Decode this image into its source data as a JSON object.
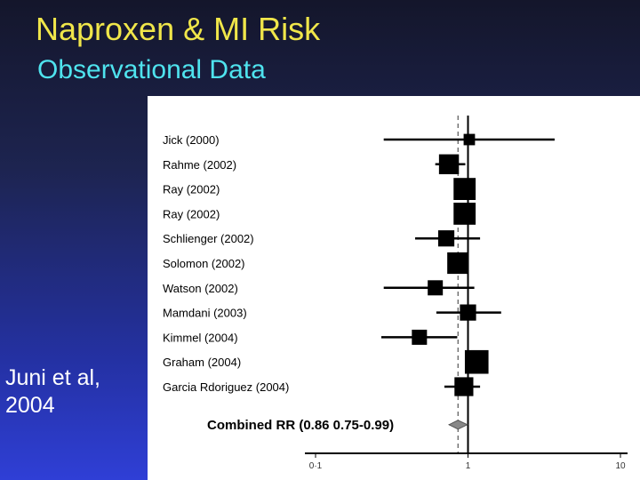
{
  "slide": {
    "title": "Naproxen & MI Risk",
    "subtitle": "Observational Data",
    "citation": "Juni et al, 2004"
  },
  "chart_data": {
    "type": "forest",
    "scale": "log",
    "xlim": [
      0.1,
      10
    ],
    "ticks": [
      {
        "value": 0.1,
        "label": "0·1"
      },
      {
        "value": 1,
        "label": "1"
      },
      {
        "value": 10,
        "label": "10"
      }
    ],
    "reference_line": 1,
    "pooled_line": 0.86,
    "studies": [
      {
        "label": "Jick (2000)",
        "rr": 1.02,
        "lo": 0.28,
        "hi": 3.7,
        "weight": 0.4
      },
      {
        "label": "Rahme (2002)",
        "rr": 0.75,
        "lo": 0.61,
        "hi": 0.96,
        "weight": 1.2
      },
      {
        "label": "Ray (2002)",
        "rr": 0.95,
        "lo": 0.86,
        "hi": 1.05,
        "weight": 1.4
      },
      {
        "label": "Ray (2002)",
        "rr": 0.95,
        "lo": 0.89,
        "hi": 1.01,
        "weight": 1.4
      },
      {
        "label": "Schlienger (2002)",
        "rr": 0.72,
        "lo": 0.45,
        "hi": 1.2,
        "weight": 0.85
      },
      {
        "label": "Solomon (2002)",
        "rr": 0.86,
        "lo": 0.76,
        "hi": 0.97,
        "weight": 1.35
      },
      {
        "label": "Watson (2002)",
        "rr": 0.61,
        "lo": 0.28,
        "hi": 1.1,
        "weight": 0.75
      },
      {
        "label": "Mamdani (2003)",
        "rr": 1.0,
        "lo": 0.62,
        "hi": 1.65,
        "weight": 0.85
      },
      {
        "label": "Kimmel (2004)",
        "rr": 0.48,
        "lo": 0.27,
        "hi": 0.85,
        "weight": 0.75
      },
      {
        "label": "Graham (2004)",
        "rr": 1.14,
        "lo": 1.0,
        "hi": 1.3,
        "weight": 1.55
      },
      {
        "label": "Garcia Rdoriguez (2004)",
        "rr": 0.94,
        "lo": 0.7,
        "hi": 1.2,
        "weight": 1.1
      }
    ],
    "combined": {
      "label": "Combined RR (0.86 0.75-0.99)",
      "rr": 0.86,
      "lo": 0.75,
      "hi": 0.99
    }
  }
}
